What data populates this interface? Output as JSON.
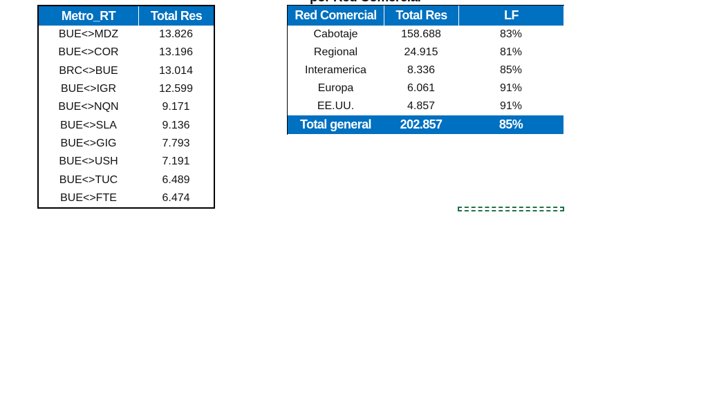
{
  "left_table": {
    "headers": [
      "Metro_RT",
      "Total Res"
    ],
    "rows": [
      [
        "BUE<>MDZ",
        "13.826"
      ],
      [
        "BUE<>COR",
        "13.196"
      ],
      [
        "BRC<>BUE",
        "13.014"
      ],
      [
        "BUE<>IGR",
        "12.599"
      ],
      [
        "BUE<>NQN",
        "9.171"
      ],
      [
        "BUE<>SLA",
        "9.136"
      ],
      [
        "BUE<>GIG",
        "7.793"
      ],
      [
        "BUE<>USH",
        "7.191"
      ],
      [
        "BUE<>TUC",
        "6.489"
      ],
      [
        "BUE<>FTE",
        "6.474"
      ]
    ]
  },
  "right_table": {
    "title": "por Red Comercial",
    "headers": [
      "Red Comercial",
      "Total Res",
      "LF"
    ],
    "rows": [
      [
        "Cabotaje",
        "158.688",
        "83%"
      ],
      [
        "Regional",
        "24.915",
        "81%"
      ],
      [
        "Interamerica",
        "8.336",
        "85%"
      ],
      [
        "Europa",
        "6.061",
        "91%"
      ],
      [
        "EE.UU.",
        "4.857",
        "91%"
      ]
    ],
    "total": [
      "Total general",
      "202.857",
      "85%"
    ]
  }
}
